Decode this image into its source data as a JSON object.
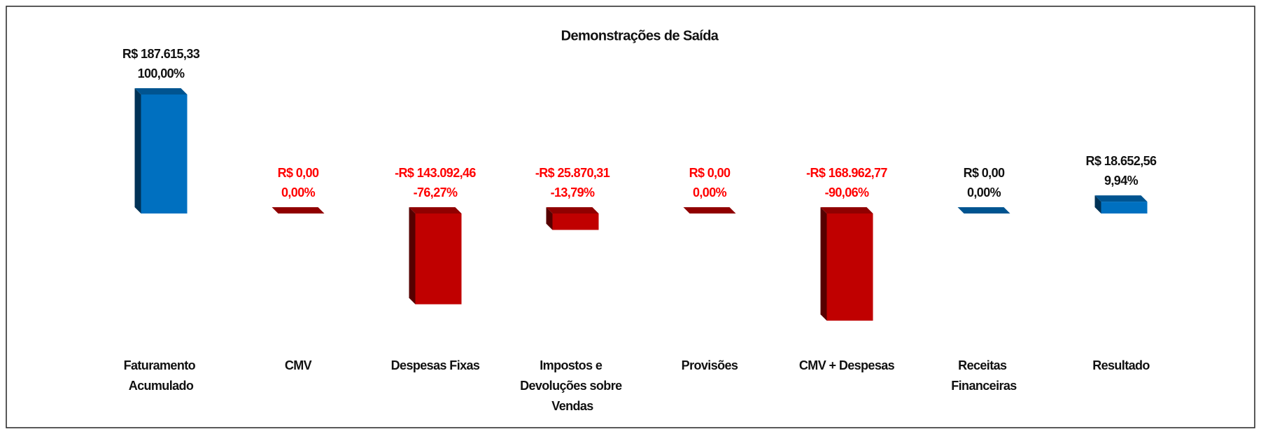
{
  "chart_data": {
    "type": "bar",
    "title": "Demonstrações de Saída",
    "categories": [
      "Faturamento Acumulado",
      "CMV",
      "Despesas Fixas",
      "Impostos e Devoluções sobre Vendas",
      "Provisões",
      "CMV + Despesas",
      "Receitas Financeiras",
      "Resultado"
    ],
    "values": [
      187615.33,
      0,
      -143092.46,
      -25870.31,
      0,
      -168962.77,
      0,
      18652.56
    ],
    "value_labels": [
      "R$ 187.615,33",
      "R$ 0,00",
      "-R$ 143.092,46",
      "-R$ 25.870,31",
      "R$ 0,00",
      "-R$ 168.962,77",
      "R$ 0,00",
      "R$ 18.652,56"
    ],
    "percent_labels": [
      "100,00%",
      "0,00%",
      "-76,27%",
      "-13,79%",
      "0,00%",
      "-90,06%",
      "0,00%",
      "9,94%"
    ],
    "colors": [
      "#0070c0",
      "#c00000",
      "#c00000",
      "#c00000",
      "#c00000",
      "#c00000",
      "#0070c0",
      "#0070c0"
    ]
  }
}
